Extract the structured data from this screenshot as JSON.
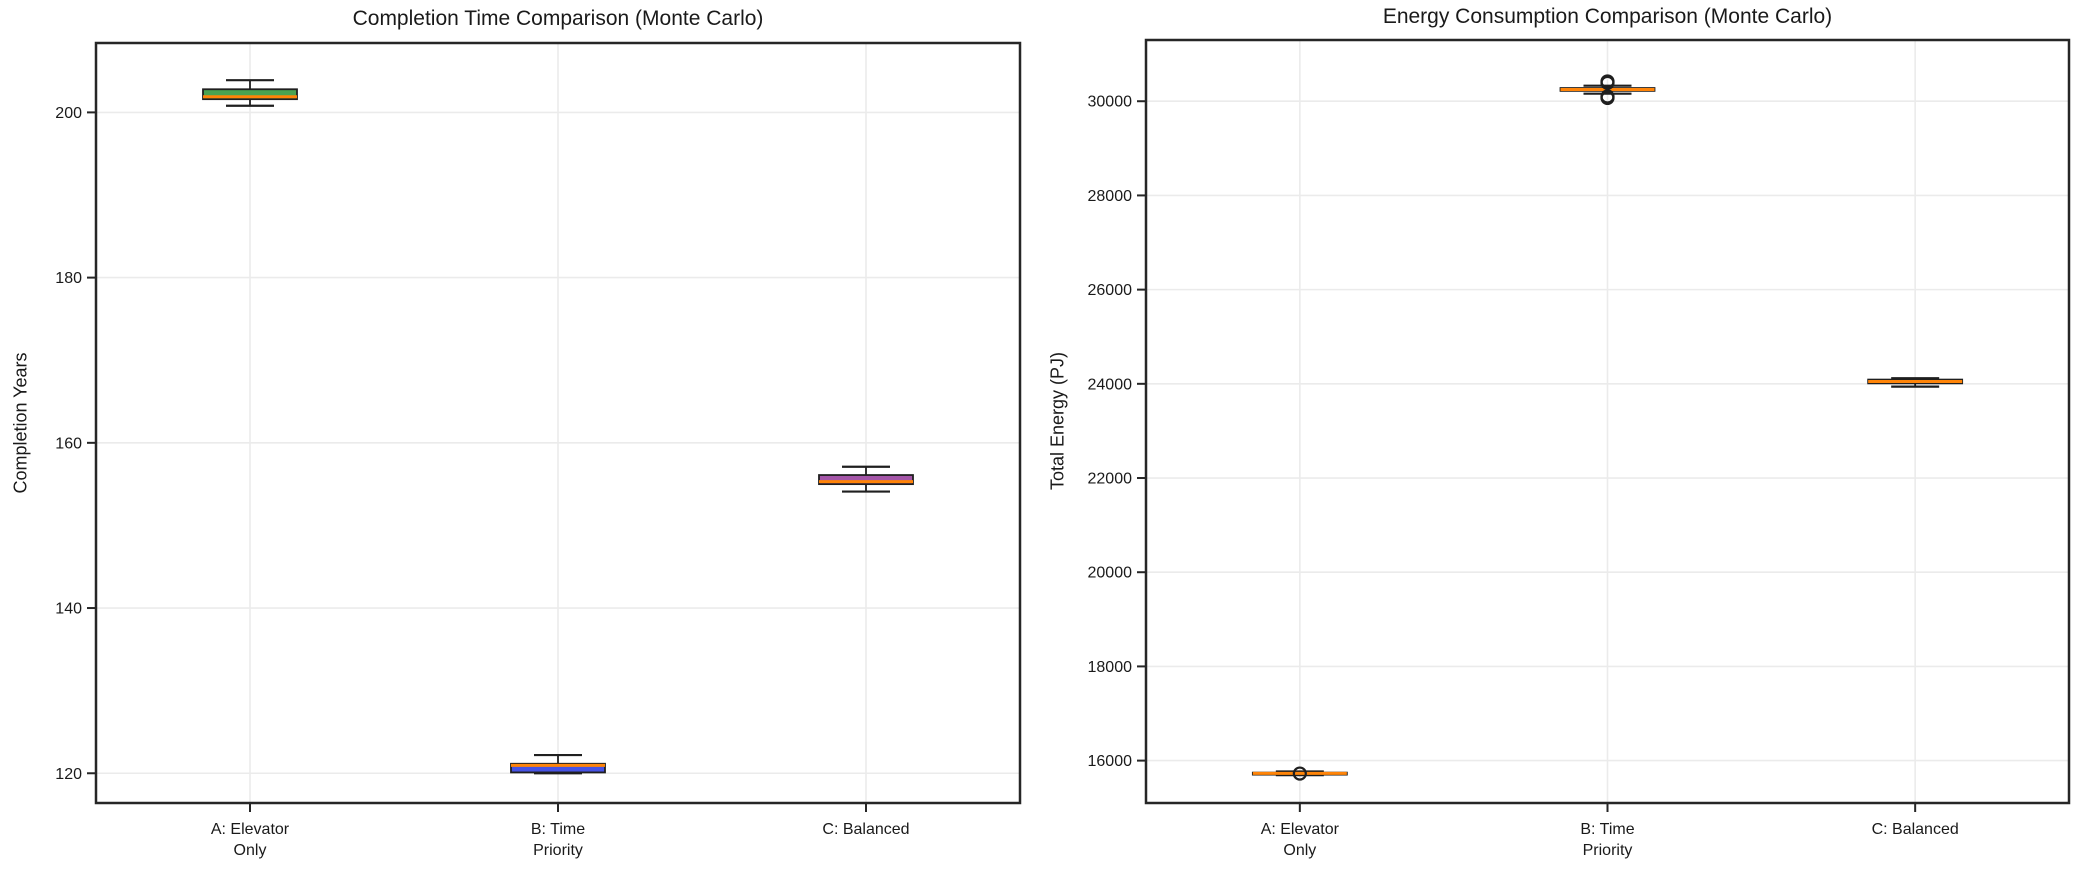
{
  "style": {
    "background": "#ffffff",
    "text_color": "#1a1a1a",
    "grid_color": "#ebebeb",
    "spine_color": "#262626",
    "median_color": "#ff8408",
    "box_edge_color": "#1f1f1f"
  },
  "chart_data": [
    {
      "type": "box",
      "title": "Completion Time Comparison (Monte Carlo)",
      "ylabel": "Completion Years",
      "ylim": [
        116.4,
        208.4
      ],
      "yticks": [
        120,
        140,
        160,
        180,
        200
      ],
      "grid": true,
      "legend": "none",
      "categories": [
        "A: Elevator\nOnly",
        "B: Time\nPriority",
        "C: Balanced"
      ],
      "series": [
        {
          "id": "A",
          "label": "A: Elevator\nOnly",
          "color": "#4aa351",
          "whislo": 200.8,
          "q1": 201.6,
          "med": 201.9,
          "q3": 202.8,
          "whishi": 203.9,
          "fliers": []
        },
        {
          "id": "B",
          "label": "B: Time\nPriority",
          "color": "#4753e3",
          "whislo": 120.0,
          "q1": 120.1,
          "med": 120.95,
          "q3": 121.15,
          "whishi": 122.2,
          "fliers": []
        },
        {
          "id": "C",
          "label": "C: Balanced",
          "color": "#a455a8",
          "whislo": 154.1,
          "q1": 155.0,
          "med": 155.3,
          "q3": 156.1,
          "whishi": 157.1,
          "fliers": []
        }
      ]
    },
    {
      "type": "box",
      "title": "Energy Consumption Comparison (Monte Carlo)",
      "ylabel": "Total Energy (PJ)",
      "ylim": [
        15100,
        31300
      ],
      "yticks": [
        16000,
        18000,
        20000,
        22000,
        24000,
        26000,
        28000,
        30000
      ],
      "grid": true,
      "legend": "none",
      "categories": [
        "A: Elevator\nOnly",
        "B: Time\nPriority",
        "C: Balanced"
      ],
      "series": [
        {
          "id": "A",
          "label": "A: Elevator\nOnly",
          "color": "#4aa351",
          "whislo": 15690,
          "q1": 15715,
          "med": 15730,
          "q3": 15745,
          "whishi": 15770,
          "fliers": [
            15725
          ]
        },
        {
          "id": "B",
          "label": "B: Time\nPriority",
          "color": "#4753e3",
          "whislo": 30160,
          "q1": 30220,
          "med": 30250,
          "q3": 30280,
          "whishi": 30330,
          "fliers": [
            30420,
            30390,
            30100,
            30070
          ]
        },
        {
          "id": "C",
          "label": "C: Balanced",
          "color": "#a455a8",
          "whislo": 23940,
          "q1": 24010,
          "med": 24050,
          "q3": 24090,
          "whishi": 24120,
          "fliers": []
        }
      ]
    }
  ]
}
